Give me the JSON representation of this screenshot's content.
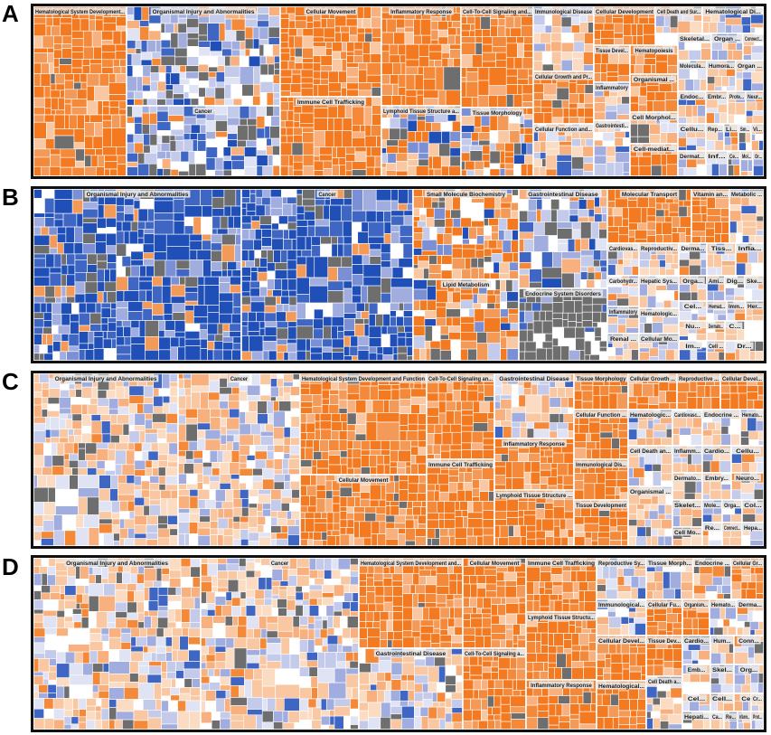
{
  "palette": {
    "orange": [
      "#f47a21",
      "#f5893a",
      "#f39a58",
      "#f7b07e",
      "#f9c8a2",
      "#fbdcc3"
    ],
    "blue": [
      "#1f4fb7",
      "#3f66c3",
      "#7b8fd4",
      "#a2addf",
      "#c4cbea",
      "#dfe3f4"
    ],
    "gray": "#6e6e6e",
    "white": "#ffffff",
    "header_bar": "#e6e6e6"
  },
  "chart_data": [
    {
      "type": "treemap",
      "panel_label": "A",
      "categories": [
        {
          "name": "Hematological System Development...",
          "value": 6,
          "color": "orange"
        },
        {
          "name": "Organismal Injury and Abnormalities",
          "value": 3,
          "color": "blue-mix"
        },
        {
          "name": "Cancer",
          "value": 3,
          "color": "blue-mix"
        },
        {
          "name": "Cellular Movement",
          "value": 4,
          "color": "orange"
        },
        {
          "name": "Immune Cell Trafficking",
          "value": 3,
          "color": "orange"
        },
        {
          "name": "Inflammatory Response",
          "value": 3,
          "color": "orange"
        },
        {
          "name": "Lymphoid Tissue Structure a...",
          "value": 3,
          "color": "orange-mix"
        },
        {
          "name": "Cell-To-Cell Signaling and...",
          "value": 4,
          "color": "orange"
        },
        {
          "name": "Tissue Morphology",
          "value": 2,
          "color": "orange-mix"
        },
        {
          "name": "Immunological Disease",
          "value": 2,
          "color": "mixed"
        },
        {
          "name": "Cellular Growth and Pr...",
          "value": 2,
          "color": "orange"
        },
        {
          "name": "Cellular Function and...",
          "value": 2,
          "color": "mixed"
        },
        {
          "name": "Cellular Development",
          "value": 2,
          "color": "orange"
        },
        {
          "name": "Tissue Devel...",
          "value": 1,
          "color": "orange"
        },
        {
          "name": "Inflammatory",
          "value": 1,
          "color": "mixed"
        },
        {
          "name": "Gastrointesti...",
          "value": 1,
          "color": "mixed"
        },
        {
          "name": "Cell Death and Sur...",
          "value": 1,
          "color": "mixed"
        },
        {
          "name": "Hematopoiesis",
          "value": 1,
          "color": "orange"
        },
        {
          "name": "Organismal ...",
          "value": 1,
          "color": "orange"
        },
        {
          "name": "Cell Morphol...",
          "value": 1,
          "color": "mixed"
        },
        {
          "name": "Cell-mediat...",
          "value": 1,
          "color": "orange"
        },
        {
          "name": "Hematological Di...",
          "value": 1,
          "color": "mixed"
        },
        {
          "name": "Skeletal...",
          "value": 1,
          "color": "mixed"
        },
        {
          "name": "Organ ...",
          "value": 1,
          "color": "mixed"
        },
        {
          "name": "Connect...",
          "value": 1,
          "color": "mixed"
        },
        {
          "name": "Molecula...",
          "value": 1,
          "color": "mixed"
        },
        {
          "name": "Humora...",
          "value": 1,
          "color": "mixed"
        },
        {
          "name": "Organ ...",
          "value": 1,
          "color": "mixed"
        },
        {
          "name": "Endoc...",
          "value": 1,
          "color": "mixed"
        },
        {
          "name": "Embr...",
          "value": 1,
          "color": "mixed"
        },
        {
          "name": "Prote...",
          "value": 1,
          "color": "mixed"
        },
        {
          "name": "Neur...",
          "value": 1,
          "color": "mixed"
        },
        {
          "name": "Cellu...",
          "value": 1,
          "color": "mixed"
        },
        {
          "name": "Dermat...",
          "value": 1,
          "color": "mixed"
        },
        {
          "name": "Rep...",
          "value": 1,
          "color": "mixed"
        },
        {
          "name": "Li...",
          "value": 1,
          "color": "mixed"
        },
        {
          "name": "Sm...",
          "value": 1,
          "color": "mixed"
        },
        {
          "name": "Vi...",
          "value": 1,
          "color": "mixed"
        },
        {
          "name": "Inf...",
          "value": 1,
          "color": "mixed"
        },
        {
          "name": "Ce...",
          "value": 1,
          "color": "mixed"
        },
        {
          "name": "Mol...",
          "value": 1,
          "color": "mixed"
        },
        {
          "name": "Or...",
          "value": 1,
          "color": "mixed"
        }
      ]
    },
    {
      "type": "treemap",
      "panel_label": "B",
      "categories": [
        {
          "name": "Organismal Injury and Abnormalities",
          "value": 6,
          "color": "blue"
        },
        {
          "name": "Cancer",
          "value": 5,
          "color": "blue"
        },
        {
          "name": "Small Molecule Biochemistry",
          "value": 3,
          "color": "orange-mix"
        },
        {
          "name": "Lipid Metabolism",
          "value": 3,
          "color": "orange-mix"
        },
        {
          "name": "Gastrointestinal Disease",
          "value": 3,
          "color": "blue-mix"
        },
        {
          "name": "Endocrine System Disorders",
          "value": 3,
          "color": "gray"
        },
        {
          "name": "Molecular Transport",
          "value": 2,
          "color": "orange"
        },
        {
          "name": "Vitamin an...",
          "value": 1,
          "color": "orange"
        },
        {
          "name": "Metabolic ...",
          "value": 1,
          "color": "mixed"
        },
        {
          "name": "Cardiovas...",
          "value": 1,
          "color": "mixed"
        },
        {
          "name": "Reproductiv...",
          "value": 1,
          "color": "mixed"
        },
        {
          "name": "Derma...",
          "value": 1,
          "color": "mixed"
        },
        {
          "name": "Tiss...",
          "value": 1,
          "color": "mixed"
        },
        {
          "name": "Infla...",
          "value": 1,
          "color": "mixed"
        },
        {
          "name": "Carbohydr...",
          "value": 1,
          "color": "mixed"
        },
        {
          "name": "Orga...",
          "value": 1,
          "color": "mixed"
        },
        {
          "name": "Hepatic Sys...",
          "value": 1,
          "color": "mixed"
        },
        {
          "name": "Ami...",
          "value": 1,
          "color": "mixed"
        },
        {
          "name": "Dig...",
          "value": 1,
          "color": "mixed"
        },
        {
          "name": "Ske...",
          "value": 1,
          "color": "mixed"
        },
        {
          "name": "Cel...",
          "value": 1,
          "color": "mixed"
        },
        {
          "name": "Inflammatory",
          "value": 1,
          "color": "mixed"
        },
        {
          "name": "Hematologic...",
          "value": 1,
          "color": "mixed"
        },
        {
          "name": "Hemat...",
          "value": 1,
          "color": "mixed"
        },
        {
          "name": "Imm...",
          "value": 1,
          "color": "mixed"
        },
        {
          "name": "Her...",
          "value": 1,
          "color": "mixed"
        },
        {
          "name": "Nu...",
          "value": 1,
          "color": "mixed"
        },
        {
          "name": "Dermato...",
          "value": 1,
          "color": "mixed"
        },
        {
          "name": "C...",
          "value": 1,
          "color": "mixed"
        },
        {
          "name": "Renal ...",
          "value": 1,
          "color": "mixed"
        },
        {
          "name": "Im...",
          "value": 1,
          "color": "mixed"
        },
        {
          "name": "Cellular Mo...",
          "value": 1,
          "color": "mixed"
        },
        {
          "name": "Cell ...",
          "value": 1,
          "color": "mixed"
        },
        {
          "name": "Dr...",
          "value": 1,
          "color": "mixed"
        }
      ]
    },
    {
      "type": "treemap",
      "panel_label": "C",
      "categories": [
        {
          "name": "Organismal Injury and Abnormalities",
          "value": 5,
          "color": "mixed"
        },
        {
          "name": "Cancer",
          "value": 4,
          "color": "mixed"
        },
        {
          "name": "Hematological System Development and Function",
          "value": 4,
          "color": "orange"
        },
        {
          "name": "Cellular Movement",
          "value": 3,
          "color": "orange"
        },
        {
          "name": "Cell-To-Cell Signaling an...",
          "value": 3,
          "color": "orange"
        },
        {
          "name": "Immune Cell Trafficking",
          "value": 3,
          "color": "orange"
        },
        {
          "name": "Gastrointestinal Disease",
          "value": 2,
          "color": "mixed"
        },
        {
          "name": "Inflammatory Response",
          "value": 2,
          "color": "orange"
        },
        {
          "name": "Lymphoid Tissue Structure ...",
          "value": 2,
          "color": "orange"
        },
        {
          "name": "Tissue Morphology",
          "value": 2,
          "color": "orange"
        },
        {
          "name": "Cellular Function ...",
          "value": 1,
          "color": "orange"
        },
        {
          "name": "Immunological Dis...",
          "value": 1,
          "color": "orange"
        },
        {
          "name": "Tissue Development",
          "value": 1,
          "color": "orange"
        },
        {
          "name": "Cellular Growth ...",
          "value": 1,
          "color": "orange"
        },
        {
          "name": "Reproductive ...",
          "value": 1,
          "color": "orange"
        },
        {
          "name": "Cellular Devel...",
          "value": 1,
          "color": "orange"
        },
        {
          "name": "Hematologic...",
          "value": 1,
          "color": "mixed"
        },
        {
          "name": "Cardiovasc...",
          "value": 1,
          "color": "mixed"
        },
        {
          "name": "Endocrine ...",
          "value": 1,
          "color": "mixed"
        },
        {
          "name": "Hemato...",
          "value": 1,
          "color": "mixed"
        },
        {
          "name": "Cell Death an...",
          "value": 1,
          "color": "mixed"
        },
        {
          "name": "Organismal ...",
          "value": 1,
          "color": "mixed"
        },
        {
          "name": "Inflamm...",
          "value": 1,
          "color": "mixed"
        },
        {
          "name": "Cardio...",
          "value": 1,
          "color": "mixed"
        },
        {
          "name": "Cellu...",
          "value": 1,
          "color": "mixed"
        },
        {
          "name": "Humo...",
          "value": 1,
          "color": "mixed"
        },
        {
          "name": "Dermato...",
          "value": 1,
          "color": "mixed"
        },
        {
          "name": "Skelet...",
          "value": 1,
          "color": "mixed"
        },
        {
          "name": "Embry...",
          "value": 1,
          "color": "mixed"
        },
        {
          "name": "Neuro...",
          "value": 1,
          "color": "mixed"
        },
        {
          "name": "Cell Mo...",
          "value": 1,
          "color": "mixed"
        },
        {
          "name": "Mole...",
          "value": 1,
          "color": "mixed"
        },
        {
          "name": "Orga...",
          "value": 1,
          "color": "mixed"
        },
        {
          "name": "Col...",
          "value": 1,
          "color": "mixed"
        },
        {
          "name": "Re...",
          "value": 1,
          "color": "mixed"
        },
        {
          "name": "Connect...",
          "value": 1,
          "color": "mixed"
        },
        {
          "name": "Hepa...",
          "value": 1,
          "color": "mixed"
        },
        {
          "name": "Or...",
          "value": 1,
          "color": "mixed"
        }
      ]
    },
    {
      "type": "treemap",
      "panel_label": "D",
      "categories": [
        {
          "name": "Organismal Injury and Abnormalities",
          "value": 5,
          "color": "mixed"
        },
        {
          "name": "Cancer",
          "value": 4,
          "color": "mixed"
        },
        {
          "name": "Hematological System Development and...",
          "value": 3,
          "color": "orange"
        },
        {
          "name": "Gastrointestinal Disease",
          "value": 3,
          "color": "mixed"
        },
        {
          "name": "Cellular Movement",
          "value": 3,
          "color": "orange"
        },
        {
          "name": "Cell-To-Cell Signaling a...",
          "value": 3,
          "color": "orange"
        },
        {
          "name": "Immune Cell Trafficking",
          "value": 3,
          "color": "orange"
        },
        {
          "name": "Lymphoid Tissue Structu...",
          "value": 2,
          "color": "orange"
        },
        {
          "name": "Inflammatory Response",
          "value": 1,
          "color": "orange"
        },
        {
          "name": "Reproductive Sy...",
          "value": 1,
          "color": "mixed"
        },
        {
          "name": "Immunological...",
          "value": 1,
          "color": "mixed"
        },
        {
          "name": "Cellular Devel...",
          "value": 1,
          "color": "orange"
        },
        {
          "name": "Hematological...",
          "value": 1,
          "color": "orange"
        },
        {
          "name": "Tissue Morph...",
          "value": 1,
          "color": "mixed"
        },
        {
          "name": "Cellular Fu...",
          "value": 1,
          "color": "orange"
        },
        {
          "name": "Tissue Dev...",
          "value": 1,
          "color": "orange"
        },
        {
          "name": "Cell Death a...",
          "value": 1,
          "color": "mixed"
        },
        {
          "name": "Endocrine ...",
          "value": 1,
          "color": "mixed"
        },
        {
          "name": "Cellular Gr...",
          "value": 1,
          "color": "orange"
        },
        {
          "name": "Organism...",
          "value": 1,
          "color": "orange"
        },
        {
          "name": "Hemato...",
          "value": 1,
          "color": "mixed"
        },
        {
          "name": "Derma...",
          "value": 1,
          "color": "mixed"
        },
        {
          "name": "Cardio...",
          "value": 1,
          "color": "mixed"
        },
        {
          "name": "Hum...",
          "value": 1,
          "color": "mixed"
        },
        {
          "name": "Conn...",
          "value": 1,
          "color": "mixed"
        },
        {
          "name": "Emb...",
          "value": 1,
          "color": "mixed"
        },
        {
          "name": "Cell M...",
          "value": 1,
          "color": "mixed"
        },
        {
          "name": "Skel...",
          "value": 1,
          "color": "mixed"
        },
        {
          "name": "Org...",
          "value": 1,
          "color": "mixed"
        },
        {
          "name": "Cel...",
          "value": 1,
          "color": "mixed"
        },
        {
          "name": "Hepati...",
          "value": 1,
          "color": "mixed"
        },
        {
          "name": "Cell...",
          "value": 1,
          "color": "mixed"
        },
        {
          "name": "Ce...",
          "value": 1,
          "color": "mixed"
        },
        {
          "name": "Ca...",
          "value": 1,
          "color": "mixed"
        },
        {
          "name": "Re...",
          "value": 1,
          "color": "mixed"
        },
        {
          "name": "Inflamm...",
          "value": 1,
          "color": "mixed"
        },
        {
          "name": "Prot...",
          "value": 1,
          "color": "mixed"
        },
        {
          "name": "Nu...",
          "value": 1,
          "color": "mixed"
        },
        {
          "name": "Cr...",
          "value": 1,
          "color": "mixed"
        }
      ]
    }
  ]
}
